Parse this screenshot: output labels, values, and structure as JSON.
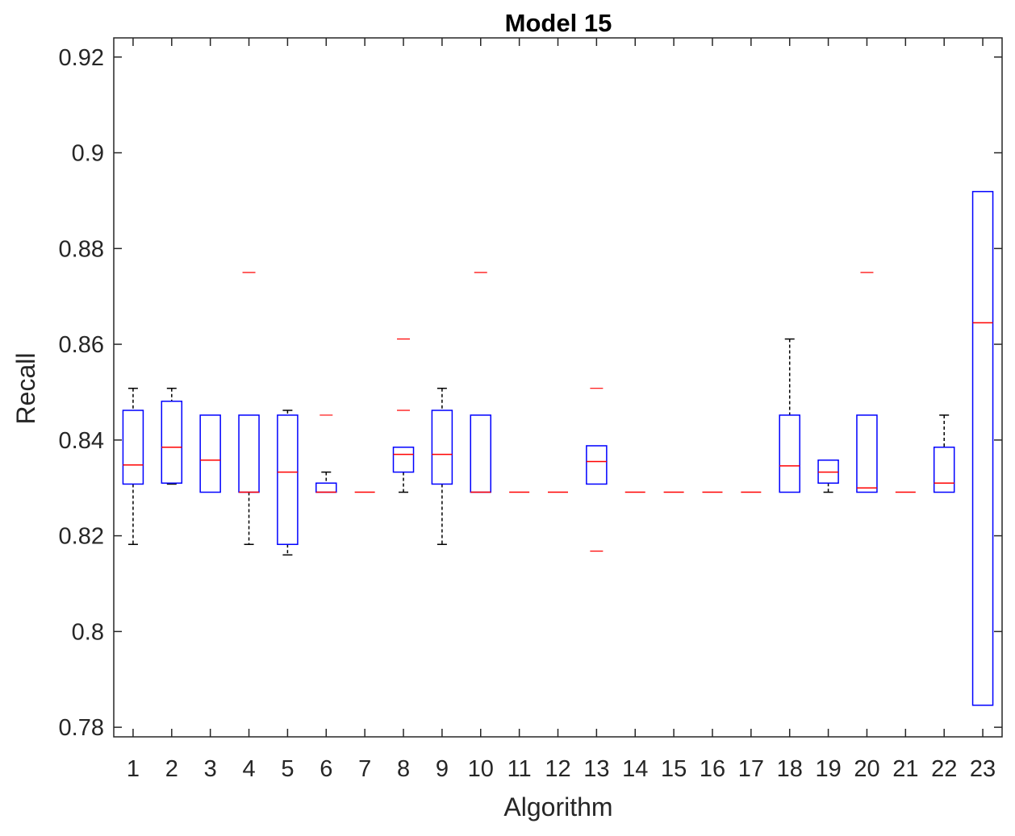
{
  "chart_data": {
    "type": "box",
    "title": "Model 15",
    "xlabel": "Algorithm",
    "ylabel": "Recall",
    "ylim": [
      0.778,
      0.924
    ],
    "yticks": [
      0.78,
      0.8,
      0.82,
      0.84,
      0.86,
      0.88,
      0.9,
      0.92
    ],
    "ytick_labels": [
      "0.78",
      "0.8",
      "0.82",
      "0.84",
      "0.86",
      "0.88",
      "0.9",
      "0.92"
    ],
    "categories": [
      "1",
      "2",
      "3",
      "4",
      "5",
      "6",
      "7",
      "8",
      "9",
      "10",
      "11",
      "12",
      "13",
      "14",
      "15",
      "16",
      "17",
      "18",
      "19",
      "20",
      "21",
      "22",
      "23"
    ],
    "grid": false,
    "colors": {
      "box": "#0000ff",
      "median": "#ff0000",
      "whisker": "#000000",
      "outlier": "#ff0000",
      "axis": "#262626"
    },
    "boxes": [
      {
        "category": "1",
        "whisker_low": 0.8182,
        "q1": 0.8308,
        "median": 0.8348,
        "q3": 0.8462,
        "whisker_high": 0.8508,
        "outliers": []
      },
      {
        "category": "2",
        "whisker_low": 0.8308,
        "q1": 0.831,
        "median": 0.8385,
        "q3": 0.8481,
        "whisker_high": 0.8508,
        "outliers": []
      },
      {
        "category": "3",
        "whisker_low": 0.8291,
        "q1": 0.8291,
        "median": 0.8358,
        "q3": 0.8452,
        "whisker_high": 0.8452,
        "outliers": []
      },
      {
        "category": "4",
        "whisker_low": 0.8182,
        "q1": 0.8291,
        "median": 0.8291,
        "q3": 0.8452,
        "whisker_high": 0.8452,
        "outliers": [
          0.875
        ]
      },
      {
        "category": "5",
        "whisker_low": 0.816,
        "q1": 0.8182,
        "median": 0.8333,
        "q3": 0.8452,
        "whisker_high": 0.8462,
        "outliers": []
      },
      {
        "category": "6",
        "whisker_low": 0.8291,
        "q1": 0.8291,
        "median": 0.8291,
        "q3": 0.831,
        "whisker_high": 0.8333,
        "outliers": [
          0.8452
        ]
      },
      {
        "category": "7",
        "whisker_low": 0.8291,
        "q1": 0.8291,
        "median": 0.8291,
        "q3": 0.8291,
        "whisker_high": 0.8291,
        "outliers": []
      },
      {
        "category": "8",
        "whisker_low": 0.8291,
        "q1": 0.8333,
        "median": 0.837,
        "q3": 0.8385,
        "whisker_high": 0.8385,
        "outliers": [
          0.8462,
          0.8611
        ]
      },
      {
        "category": "9",
        "whisker_low": 0.8182,
        "q1": 0.8308,
        "median": 0.837,
        "q3": 0.8462,
        "whisker_high": 0.8508,
        "outliers": []
      },
      {
        "category": "10",
        "whisker_low": 0.8291,
        "q1": 0.8291,
        "median": 0.8291,
        "q3": 0.8452,
        "whisker_high": 0.8452,
        "outliers": [
          0.875
        ]
      },
      {
        "category": "11",
        "whisker_low": 0.8291,
        "q1": 0.8291,
        "median": 0.8291,
        "q3": 0.8291,
        "whisker_high": 0.8291,
        "outliers": []
      },
      {
        "category": "12",
        "whisker_low": 0.8291,
        "q1": 0.8291,
        "median": 0.8291,
        "q3": 0.8291,
        "whisker_high": 0.8291,
        "outliers": []
      },
      {
        "category": "13",
        "whisker_low": 0.8308,
        "q1": 0.8308,
        "median": 0.8355,
        "q3": 0.8388,
        "whisker_high": 0.8388,
        "outliers": [
          0.8508,
          0.8168
        ]
      },
      {
        "category": "14",
        "whisker_low": 0.8291,
        "q1": 0.8291,
        "median": 0.8291,
        "q3": 0.8291,
        "whisker_high": 0.8291,
        "outliers": []
      },
      {
        "category": "15",
        "whisker_low": 0.8291,
        "q1": 0.8291,
        "median": 0.8291,
        "q3": 0.8291,
        "whisker_high": 0.8291,
        "outliers": []
      },
      {
        "category": "16",
        "whisker_low": 0.8291,
        "q1": 0.8291,
        "median": 0.8291,
        "q3": 0.8291,
        "whisker_high": 0.8291,
        "outliers": []
      },
      {
        "category": "17",
        "whisker_low": 0.8291,
        "q1": 0.8291,
        "median": 0.8291,
        "q3": 0.8291,
        "whisker_high": 0.8291,
        "outliers": []
      },
      {
        "category": "18",
        "whisker_low": 0.8291,
        "q1": 0.8291,
        "median": 0.8346,
        "q3": 0.8452,
        "whisker_high": 0.8611,
        "outliers": []
      },
      {
        "category": "19",
        "whisker_low": 0.8291,
        "q1": 0.831,
        "median": 0.8333,
        "q3": 0.8358,
        "whisker_high": 0.8358,
        "outliers": []
      },
      {
        "category": "20",
        "whisker_low": 0.8291,
        "q1": 0.8291,
        "median": 0.83,
        "q3": 0.8452,
        "whisker_high": 0.8452,
        "outliers": [
          0.875
        ]
      },
      {
        "category": "21",
        "whisker_low": 0.8291,
        "q1": 0.8291,
        "median": 0.8291,
        "q3": 0.8291,
        "whisker_high": 0.8291,
        "outliers": []
      },
      {
        "category": "22",
        "whisker_low": 0.8291,
        "q1": 0.8291,
        "median": 0.831,
        "q3": 0.8385,
        "whisker_high": 0.8452,
        "outliers": []
      },
      {
        "category": "23",
        "whisker_low": 0.7846,
        "q1": 0.7846,
        "median": 0.8645,
        "q3": 0.8919,
        "whisker_high": 0.8919,
        "outliers": []
      }
    ]
  }
}
